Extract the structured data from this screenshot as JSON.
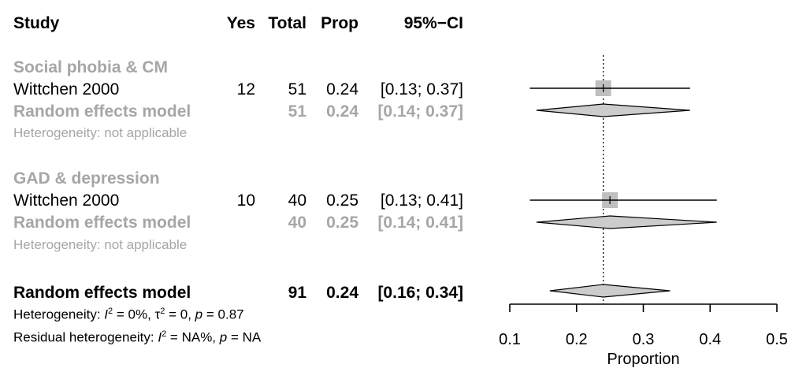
{
  "colors": {
    "text": "#000000",
    "subgroup_text": "#a6a6a6",
    "square": "#bfbfbf",
    "diamond": "#cccccc"
  },
  "header": {
    "study": "Study",
    "yes": "Yes",
    "total": "Total",
    "prop": "Prop",
    "ci": "95%−CI"
  },
  "subgroups": [
    {
      "title": "Social phobia & CM",
      "study": {
        "name": "Wittchen 2000",
        "yes": "12",
        "total": "51",
        "prop": "0.24",
        "ci": "[0.13; 0.37]"
      },
      "re": {
        "label": "Random effects model",
        "total": "51",
        "prop": "0.24",
        "ci": "[0.14; 0.37]"
      },
      "heterogeneity": "Heterogeneity: not applicable"
    },
    {
      "title": "GAD & depression",
      "study": {
        "name": "Wittchen 2000",
        "yes": "10",
        "total": "40",
        "prop": "0.25",
        "ci": "[0.13; 0.41]"
      },
      "re": {
        "label": "Random effects model",
        "total": "40",
        "prop": "0.25",
        "ci": "[0.14; 0.41]"
      },
      "heterogeneity": "Heterogeneity: not applicable"
    }
  ],
  "overall": {
    "label": "Random effects model",
    "total": "91",
    "prop": "0.24",
    "ci": "[0.16; 0.34]",
    "heterogeneity": {
      "prefix": "Heterogeneity: ",
      "i2_sym": "I",
      "i2_sup": "2",
      "i2_val": " = 0%, ",
      "tau_sym": "τ",
      "tau_sup": "2",
      "tau_val": " = 0, ",
      "p_sym": "p",
      "p_val": " = 0.87"
    },
    "residual": {
      "prefix": "Residual heterogeneity: ",
      "i2_sym": "I",
      "i2_sup": "2",
      "i2_val": " = NA%, ",
      "p_sym": "p",
      "p_val": " = NA"
    }
  },
  "chart_data": {
    "type": "forest",
    "xlabel": "Proportion",
    "xlim": [
      0.1,
      0.5
    ],
    "xticks": [
      0.1,
      0.2,
      0.3,
      0.4,
      0.5
    ],
    "xtick_labels": [
      "0.1",
      "0.2",
      "0.3",
      "0.4",
      "0.5"
    ],
    "reference_line": 0.24,
    "reference_style": "dotted",
    "studies": [
      {
        "name": "Wittchen 2000",
        "subgroup": "Social phobia & CM",
        "estimate": 0.24,
        "lower": 0.13,
        "upper": 0.37
      },
      {
        "name": "Wittchen 2000",
        "subgroup": "GAD & depression",
        "estimate": 0.25,
        "lower": 0.13,
        "upper": 0.41
      }
    ],
    "subgroup_pooled": [
      {
        "subgroup": "Social phobia & CM",
        "estimate": 0.24,
        "lower": 0.14,
        "upper": 0.37
      },
      {
        "subgroup": "GAD & depression",
        "estimate": 0.25,
        "lower": 0.14,
        "upper": 0.41
      }
    ],
    "overall_pooled": {
      "estimate": 0.24,
      "lower": 0.16,
      "upper": 0.34
    }
  }
}
